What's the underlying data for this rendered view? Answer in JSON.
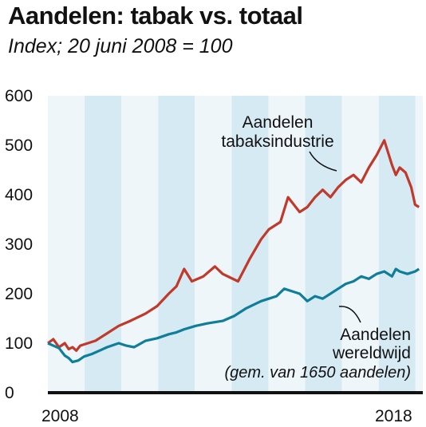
{
  "title": "Aandelen: tabak vs. totaal",
  "subtitle": "Index; 20 juni 2008 = 100",
  "colors": {
    "tobacco": "#c0392b",
    "world": "#0f7e9b",
    "band_dark": "#d6eaf4",
    "band_light": "#eef6fa"
  },
  "chart_data": {
    "type": "line",
    "title": "Aandelen: tabak vs. totaal",
    "subtitle": "Index; 20 juni 2008 = 100",
    "xlabel": "",
    "ylabel": "",
    "ylim": [
      0,
      600
    ],
    "yticks": [
      0,
      100,
      200,
      300,
      400,
      500,
      600
    ],
    "xlim": [
      2008.46,
      2018.2
    ],
    "x_tick_labels": [
      "2008",
      "2018"
    ],
    "grid": false,
    "annotations": {
      "tobacco": [
        "Aandelen",
        "tabaksindustrie"
      ],
      "world": [
        "Aandelen",
        "wereldwijd",
        "(gem. van 1650 aandelen)"
      ]
    },
    "series": [
      {
        "id": "tobacco",
        "x": [
          2008.46,
          2008.6,
          2008.75,
          2008.9,
          2009.0,
          2009.1,
          2009.2,
          2009.3,
          2009.5,
          2009.7,
          2010.0,
          2010.3,
          2010.6,
          2011.0,
          2011.3,
          2011.6,
          2011.8,
          2012.0,
          2012.2,
          2012.5,
          2012.8,
          2013.0,
          2013.4,
          2013.7,
          2014.0,
          2014.2,
          2014.5,
          2014.7,
          2015.0,
          2015.2,
          2015.4,
          2015.6,
          2015.8,
          2016.0,
          2016.2,
          2016.4,
          2016.6,
          2016.8,
          2017.0,
          2017.2,
          2017.4,
          2017.5,
          2017.6,
          2017.75,
          2017.9,
          2018.0,
          2018.1
        ],
        "values": [
          100,
          108,
          92,
          100,
          88,
          92,
          85,
          95,
          100,
          105,
          120,
          135,
          145,
          160,
          175,
          200,
          215,
          250,
          225,
          235,
          255,
          240,
          225,
          270,
          310,
          330,
          345,
          395,
          365,
          375,
          395,
          410,
          395,
          415,
          430,
          440,
          425,
          455,
          480,
          510,
          460,
          440,
          455,
          445,
          415,
          380,
          375
        ]
      },
      {
        "id": "world",
        "x": [
          2008.46,
          2008.6,
          2008.75,
          2008.9,
          2009.0,
          2009.1,
          2009.25,
          2009.4,
          2009.6,
          2009.8,
          2010.0,
          2010.3,
          2010.5,
          2010.7,
          2011.0,
          2011.3,
          2011.6,
          2011.8,
          2012.0,
          2012.3,
          2012.6,
          2013.0,
          2013.3,
          2013.6,
          2014.0,
          2014.2,
          2014.4,
          2014.6,
          2014.8,
          2015.0,
          2015.2,
          2015.4,
          2015.6,
          2015.8,
          2016.0,
          2016.2,
          2016.4,
          2016.6,
          2016.8,
          2017.0,
          2017.2,
          2017.4,
          2017.5,
          2017.6,
          2017.8,
          2018.0,
          2018.1
        ],
        "values": [
          100,
          95,
          90,
          75,
          70,
          62,
          65,
          73,
          78,
          85,
          92,
          100,
          95,
          92,
          105,
          110,
          118,
          122,
          128,
          135,
          140,
          145,
          155,
          170,
          185,
          190,
          195,
          210,
          205,
          200,
          185,
          195,
          190,
          200,
          210,
          220,
          225,
          235,
          230,
          240,
          245,
          235,
          250,
          245,
          240,
          245,
          250
        ]
      }
    ]
  }
}
